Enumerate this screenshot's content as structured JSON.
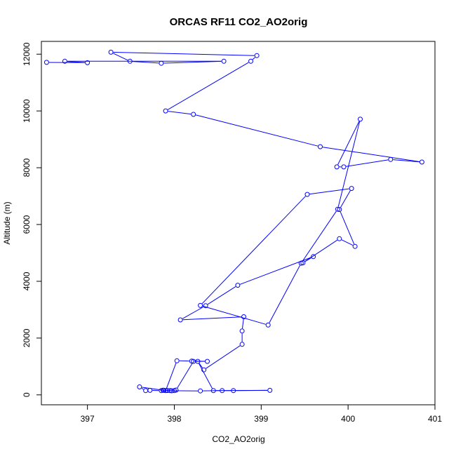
{
  "chart_data": {
    "type": "scatter",
    "title": "ORCAS RF11 CO2_AO2orig",
    "xlabel": "CO2_AO2orig",
    "ylabel": "Altitude (m)",
    "xlim": [
      396.47,
      401.0
    ],
    "ylim": [
      -350,
      12450
    ],
    "x_ticks": [
      397,
      398,
      399,
      400,
      401
    ],
    "y_ticks": [
      0,
      2000,
      4000,
      6000,
      8000,
      10000,
      12000
    ],
    "grid": false,
    "legend": "none",
    "style": "points joined by lines (type o)",
    "color": "#0000ff",
    "series": [
      {
        "x": [
          398.0,
          397.88,
          397.87,
          397.95,
          398.02,
          398.22,
          398.38,
          398.2,
          398.03,
          397.9,
          397.6,
          397.67,
          397.72,
          397.85,
          397.92,
          397.97,
          398.3,
          398.55,
          398.68,
          399.1,
          398.45,
          398.27,
          398.34,
          398.78,
          398.78,
          398.8,
          398.07,
          398.36,
          398.73,
          399.6,
          399.48,
          399.9,
          400.08,
          399.9,
          400.04,
          399.53,
          398.3,
          399.08,
          399.46,
          399.88,
          400.14,
          399.87,
          399.95,
          400.49,
          400.85,
          399.68,
          398.22,
          397.9,
          398.88,
          398.95,
          397.27,
          397.49,
          397.85,
          398.57,
          396.74,
          397.0,
          396.53
        ],
        "y": [
          150,
          160,
          165,
          150,
          170,
          1180,
          1180,
          1190,
          1200,
          150,
          280,
          150,
          160,
          150,
          155,
          145,
          140,
          150,
          150,
          160,
          150,
          1180,
          880,
          1780,
          2250,
          2750,
          2640,
          3140,
          3860,
          4870,
          4650,
          5500,
          5230,
          6530,
          7270,
          7060,
          3150,
          2460,
          4640,
          6540,
          9710,
          8030,
          8030,
          8290,
          8200,
          8740,
          9880,
          10000,
          11750,
          11950,
          12070,
          11750,
          11680,
          11750,
          11750,
          11700,
          11710
        ]
      }
    ]
  }
}
